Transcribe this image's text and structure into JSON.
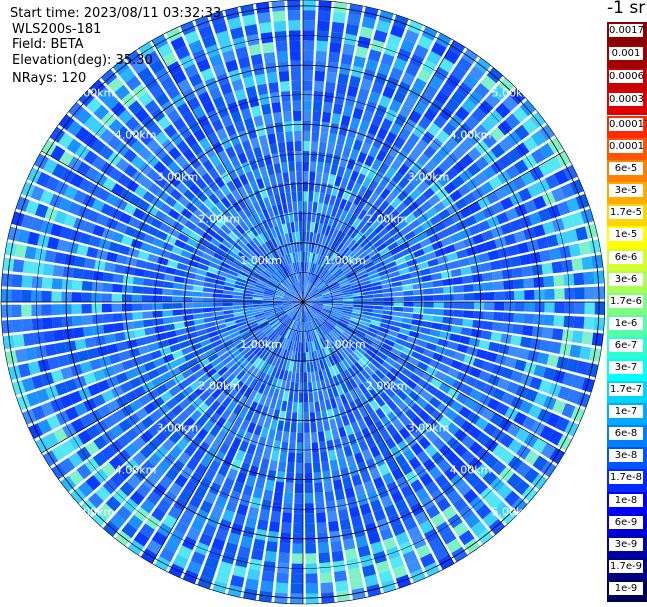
{
  "header": {
    "start_time": "Start time: 2023/08/11 03:32:33",
    "instrument": "WLS200s-181",
    "field": "Field: BETA",
    "elevation": "Elevation(deg): 35.30",
    "nrays": "NRays: 120"
  },
  "colorbar": {
    "title": "-1 sr",
    "labels_top": [
      "0.0017",
      "0.001",
      "0.0006",
      "0.0003"
    ],
    "labels_main": [
      "0.00017",
      "0.0001",
      "6e-5",
      "3e-5",
      "1.7e-5",
      "1e-5",
      "6e-6",
      "3e-6",
      "1.7e-6",
      "1e-6",
      "6e-7",
      "3e-7",
      "1.7e-7",
      "1e-7",
      "6e-8",
      "3e-8",
      "1.7e-8",
      "1e-8",
      "6e-9",
      "3e-9",
      "1.7e-9",
      "1e-9"
    ],
    "colors_top": [
      "#8b0000",
      "#a00000",
      "#c80000",
      "#e00000"
    ],
    "colors_main": [
      "#ff2a00",
      "#ff5500",
      "#ff7f00",
      "#ffaa00",
      "#ffd400",
      "#ffff00",
      "#d4ff2b",
      "#aaff55",
      "#7fff80",
      "#55ffaa",
      "#2affd4",
      "#00ffff",
      "#00d4ff",
      "#00aaff",
      "#0080ff",
      "#0055ff",
      "#002aff",
      "#0000ff",
      "#0000d4",
      "#0000aa",
      "#000080",
      "#000055"
    ]
  },
  "chart_data": {
    "type": "heatmap",
    "plot_type": "PPI polar plot",
    "field": "BETA",
    "n_rays": 120,
    "range_km_max": 5.1,
    "ring_labels": [
      "1.00km",
      "2.00km",
      "3.00km",
      "4.00km",
      "5.00km"
    ],
    "ring_values_km": [
      1,
      2,
      3,
      4,
      5
    ],
    "value_range": [
      1e-09,
      0.0017
    ],
    "dominant_values": "mostly 1e-8 to 1e-7 (blue), scattered 3e-7 to 1.7e-6 (cyan/green), higher near center",
    "grid": true
  }
}
